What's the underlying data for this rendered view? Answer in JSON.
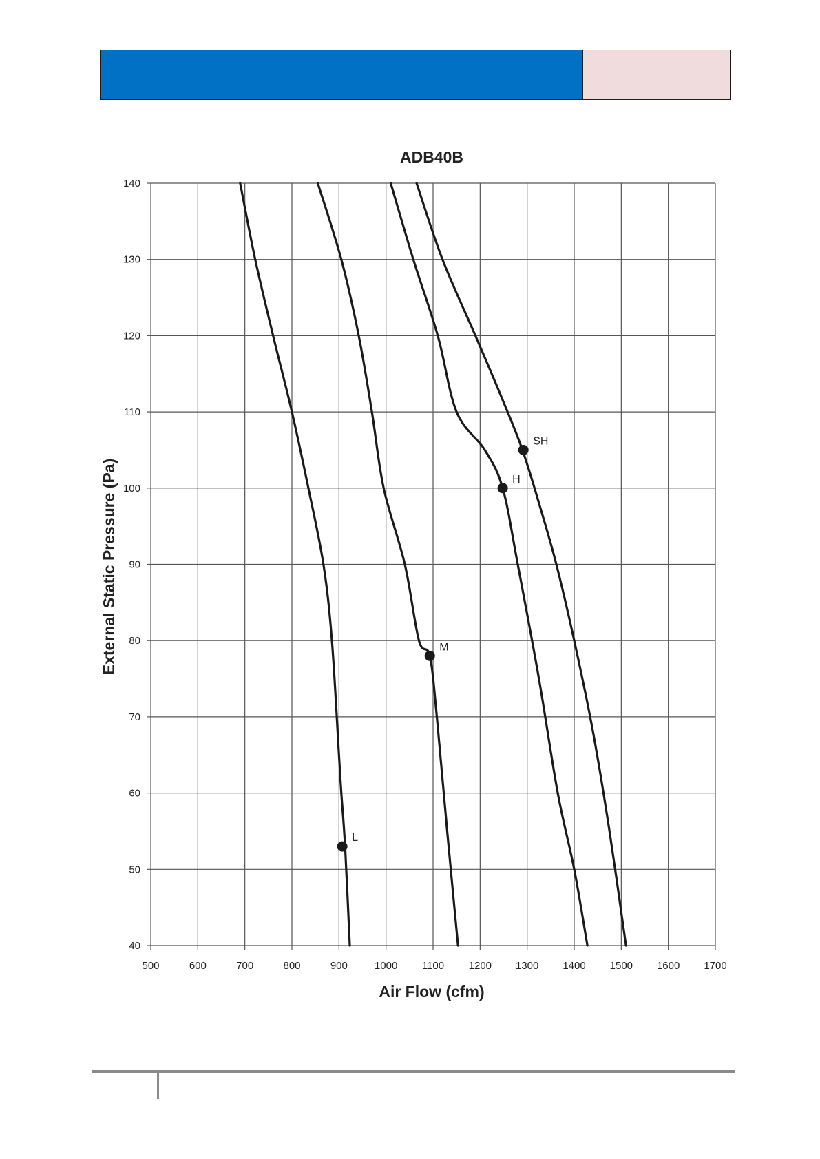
{
  "colors": {
    "header_blue": "#0071c4",
    "header_pink": "#f0dcdc",
    "curve": "#1a1a1a",
    "grid": "#555555"
  },
  "chart_data": {
    "type": "line",
    "title": "ADB40B",
    "xlabel": "Air Flow (cfm)",
    "ylabel": "External Static Pressure (Pa)",
    "xlim": [
      500,
      1700
    ],
    "ylim": [
      40,
      140
    ],
    "x_ticks": [
      500,
      600,
      700,
      800,
      900,
      1000,
      1100,
      1200,
      1300,
      1400,
      1500,
      1600,
      1700
    ],
    "y_ticks": [
      40,
      50,
      60,
      70,
      80,
      90,
      100,
      110,
      120,
      130,
      140
    ],
    "grid": true,
    "legend": "none",
    "series": [
      {
        "x": [
          690,
          722,
          760,
          800,
          835,
          867,
          885,
          900,
          905,
          913,
          923
        ],
        "y": [
          140,
          130,
          120,
          110,
          100,
          90,
          80,
          65,
          60,
          53,
          40
        ]
      },
      {
        "x": [
          855,
          905,
          942,
          970,
          995,
          1040,
          1070,
          1093,
          1108,
          1130,
          1153
        ],
        "y": [
          140,
          130,
          120,
          110,
          100,
          90,
          80,
          78,
          70,
          55,
          40
        ]
      },
      {
        "x": [
          1010,
          1058,
          1110,
          1150,
          1210,
          1248,
          1280,
          1325,
          1365,
          1400,
          1428
        ],
        "y": [
          140,
          130,
          120,
          110,
          105,
          100,
          90,
          75,
          60,
          50,
          40
        ]
      },
      {
        "x": [
          1065,
          1120,
          1190,
          1245,
          1290,
          1330,
          1362,
          1400,
          1440,
          1475,
          1510
        ],
        "y": [
          140,
          130,
          120,
          112,
          105,
          97,
          90,
          80,
          68,
          55,
          40
        ]
      }
    ],
    "points": [
      {
        "label": "L",
        "x": 907,
        "y": 53
      },
      {
        "label": "M",
        "x": 1093,
        "y": 78
      },
      {
        "label": "H",
        "x": 1248,
        "y": 100
      },
      {
        "label": "SH",
        "x": 1292,
        "y": 105
      }
    ]
  }
}
